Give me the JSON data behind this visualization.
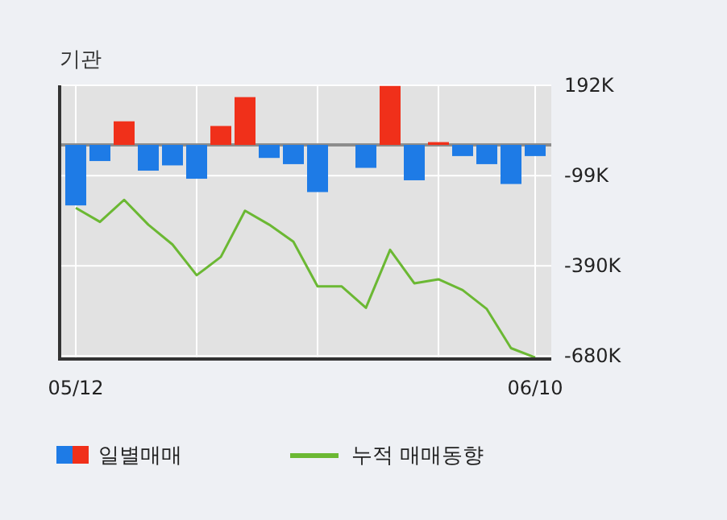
{
  "chart_data": {
    "type": "bar",
    "title": "기관",
    "categories": [
      "05/12",
      null,
      null,
      null,
      null,
      null,
      null,
      null,
      null,
      null,
      null,
      null,
      null,
      null,
      null,
      null,
      null,
      null,
      null,
      "06/10"
    ],
    "series": [
      {
        "name": "일별매매",
        "colors": [
          "#1e7be6",
          "#1e7be6",
          "#f0301a",
          "#1e7be6",
          "#1e7be6",
          "#1e7be6",
          "#f0301a",
          "#f0301a",
          "#1e7be6",
          "#1e7be6",
          "#1e7be6",
          "#1e7be6",
          "#1e7be6",
          "#f0301a",
          "#1e7be6",
          "#f0301a",
          "#1e7be6",
          "#1e7be6",
          "#1e7be6",
          "#1e7be6"
        ],
        "values": [
          -195,
          -52,
          76,
          -83,
          -66,
          -109,
          61,
          154,
          -42,
          -62,
          -152,
          0,
          -74,
          190,
          -114,
          9,
          -36,
          -62,
          -126,
          -36
        ]
      },
      {
        "name": "누적 매매동향",
        "type": "line",
        "color": "#6bb833",
        "values": [
          -203,
          -248,
          -177,
          -257,
          -321,
          -420,
          -361,
          -212,
          -257,
          -312,
          -456,
          -456,
          -525,
          -338,
          -446,
          -433,
          -468,
          -529,
          -655,
          -685
        ]
      }
    ],
    "ylim": [
      -690,
      192
    ],
    "yticks": [
      {
        "value": 192,
        "label": "192K"
      },
      {
        "value": -99,
        "label": "-99K"
      },
      {
        "value": -390,
        "label": "-390K"
      },
      {
        "value": -680,
        "label": "-680K"
      }
    ],
    "ref_lines": [
      {
        "axis": "y",
        "value": 0,
        "color": "#8c8c8c"
      }
    ],
    "grid": true,
    "legend": "bottom"
  }
}
